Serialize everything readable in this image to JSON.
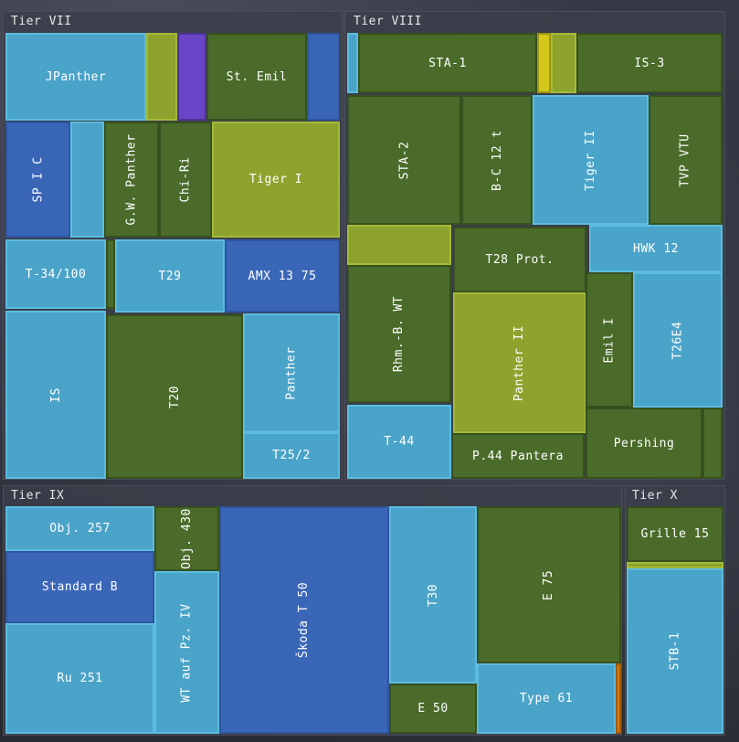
{
  "chart_data": {
    "type": "treemap",
    "colors": {
      "light_blue": "#4aa3c8",
      "olive": "#4a6b2a",
      "royal_blue": "#3a66b8",
      "yellow_green": "#8ea32e",
      "purple": "#6a45c8",
      "yellow": "#d4c81a",
      "orange": "#d47c14",
      "group_bg": "#3a3e4a",
      "text": "#ffffff"
    },
    "groups": [
      {
        "name": "Tier VII",
        "items": [
          {
            "label": "JPanther",
            "color": "light_blue"
          },
          {
            "label": "",
            "color": "yellow_green"
          },
          {
            "label": "",
            "color": "purple"
          },
          {
            "label": "St. Emil",
            "color": "olive"
          },
          {
            "label": "",
            "color": "royal_blue"
          },
          {
            "label": "SP I C",
            "color": "royal_blue"
          },
          {
            "label": "",
            "color": "light_blue"
          },
          {
            "label": "G.W. Panther",
            "color": "olive"
          },
          {
            "label": "Chi-Ri",
            "color": "olive"
          },
          {
            "label": "Tiger I",
            "color": "yellow_green"
          },
          {
            "label": "T-34/100",
            "color": "light_blue"
          },
          {
            "label": "",
            "color": "olive"
          },
          {
            "label": "T29",
            "color": "light_blue"
          },
          {
            "label": "AMX 13 75",
            "color": "royal_blue"
          },
          {
            "label": "IS",
            "color": "light_blue"
          },
          {
            "label": "T20",
            "color": "olive"
          },
          {
            "label": "Panther",
            "color": "light_blue"
          },
          {
            "label": "T25/2",
            "color": "light_blue"
          }
        ]
      },
      {
        "name": "Tier VIII",
        "items": [
          {
            "label": "",
            "color": "light_blue"
          },
          {
            "label": "STA-1",
            "color": "olive"
          },
          {
            "label": "",
            "color": "yellow"
          },
          {
            "label": "",
            "color": "yellow_green"
          },
          {
            "label": "IS-3",
            "color": "olive"
          },
          {
            "label": "STA-2",
            "color": "olive"
          },
          {
            "label": "B-C 12 t",
            "color": "olive"
          },
          {
            "label": "Tiger II",
            "color": "light_blue"
          },
          {
            "label": "TVP VTU",
            "color": "olive"
          },
          {
            "label": "",
            "color": "yellow_green"
          },
          {
            "label": "T28 Prot.",
            "color": "olive"
          },
          {
            "label": "HWK 12",
            "color": "light_blue"
          },
          {
            "label": "Rhm.-B. WT",
            "color": "olive"
          },
          {
            "label": "Panther II",
            "color": "yellow_green"
          },
          {
            "label": "Emil I",
            "color": "olive"
          },
          {
            "label": "T26E4",
            "color": "light_blue"
          },
          {
            "label": "T-44",
            "color": "light_blue"
          },
          {
            "label": "P.44 Pantera",
            "color": "olive"
          },
          {
            "label": "Pershing",
            "color": "olive"
          },
          {
            "label": "",
            "color": "olive"
          }
        ]
      },
      {
        "name": "Tier IX",
        "items": [
          {
            "label": "Obj. 257",
            "color": "light_blue"
          },
          {
            "label": "Obj. 430",
            "color": "olive"
          },
          {
            "label": "Standard B",
            "color": "royal_blue"
          },
          {
            "label": "WT auf Pz. IV",
            "color": "light_blue"
          },
          {
            "label": "Ru 251",
            "color": "light_blue"
          },
          {
            "label": "Škoda T 50",
            "color": "royal_blue"
          },
          {
            "label": "T30",
            "color": "light_blue"
          },
          {
            "label": "E 75",
            "color": "olive"
          },
          {
            "label": "E 50",
            "color": "olive"
          },
          {
            "label": "Type 61",
            "color": "light_blue"
          },
          {
            "label": "",
            "color": "orange"
          }
        ]
      },
      {
        "name": "Tier X",
        "items": [
          {
            "label": "Grille 15",
            "color": "olive"
          },
          {
            "label": "",
            "color": "yellow_green"
          },
          {
            "label": "STB-1",
            "color": "light_blue"
          }
        ]
      }
    ]
  }
}
